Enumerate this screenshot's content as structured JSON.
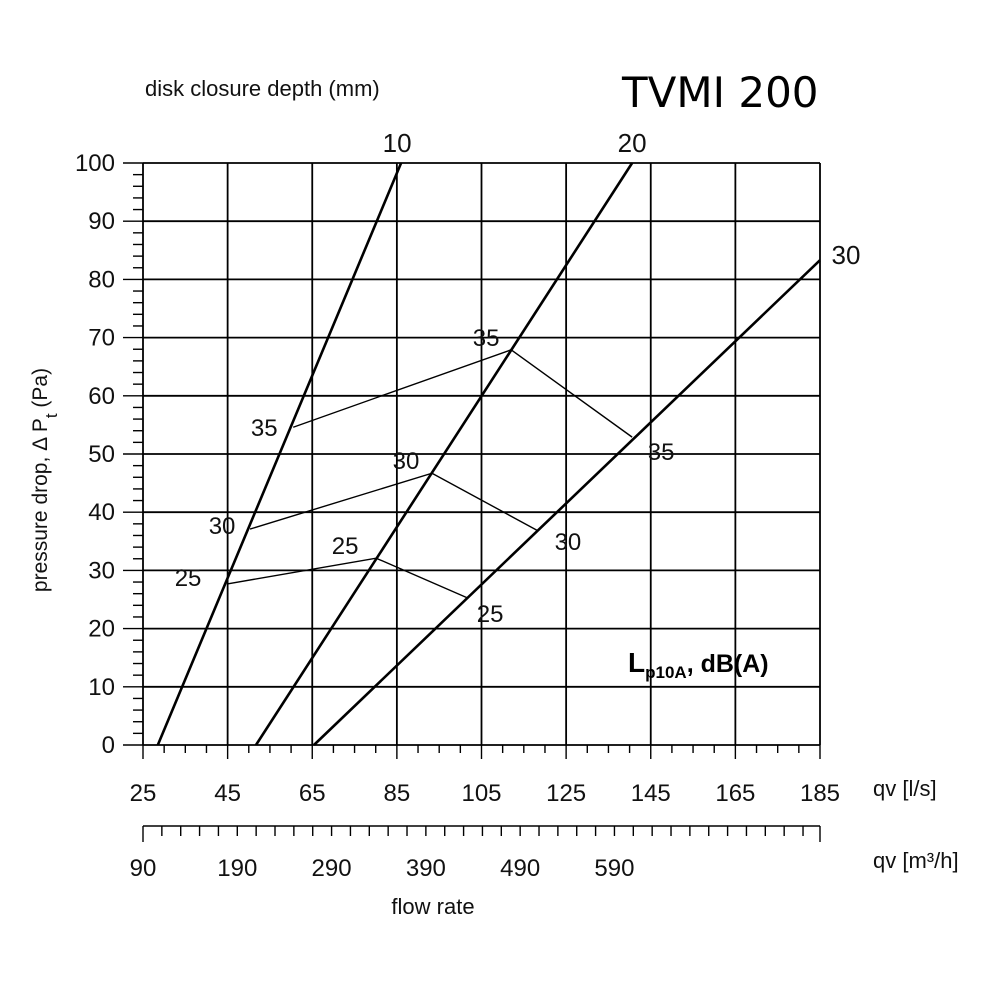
{
  "chart_data": {
    "type": "line",
    "title": "TVMI 200",
    "disk_label": "disk closure depth (mm)",
    "xlabel": "flow rate",
    "x_unit_label": "qv [l/s]",
    "ylabel": {
      "main": "pressure drop,  Δ P",
      "subscript": "t",
      "unit": " (Pa)"
    },
    "xlim": [
      25,
      185
    ],
    "ylim": [
      0,
      100
    ],
    "x_ticks": [
      25,
      45,
      65,
      85,
      105,
      125,
      145,
      165,
      185
    ],
    "y_ticks": [
      0,
      10,
      20,
      30,
      40,
      50,
      60,
      70,
      80,
      90,
      100
    ],
    "grid": true,
    "secondary_x": {
      "label": "qv [m³/h]",
      "range": [
        90,
        808
      ],
      "ticks": [
        90,
        190,
        290,
        390,
        490,
        590
      ]
    },
    "disk_series": [
      {
        "name": "10",
        "points": [
          [
            28.5,
            0
          ],
          [
            86.0,
            100
          ]
        ]
      },
      {
        "name": "20",
        "points": [
          [
            51.7,
            0
          ],
          [
            140.6,
            100
          ]
        ]
      },
      {
        "name": "30",
        "points": [
          [
            65.4,
            0
          ],
          [
            185,
            83.3
          ]
        ]
      }
    ],
    "noise_label": {
      "main": "L",
      "subscript": "p10A",
      "suffix": ", dB(A)"
    },
    "noise_series": [
      {
        "name": "25",
        "points": [
          [
            45.1,
            27.7
          ],
          [
            80.1,
            32.1
          ],
          [
            101.6,
            25.3
          ]
        ]
      },
      {
        "name": "30",
        "points": [
          [
            50.3,
            37.1
          ],
          [
            93.3,
            46.7
          ],
          [
            118.1,
            36.9
          ]
        ]
      },
      {
        "name": "35",
        "points": [
          [
            60.5,
            54.6
          ],
          [
            112.0,
            67.9
          ],
          [
            140.6,
            52.9
          ]
        ]
      }
    ]
  }
}
